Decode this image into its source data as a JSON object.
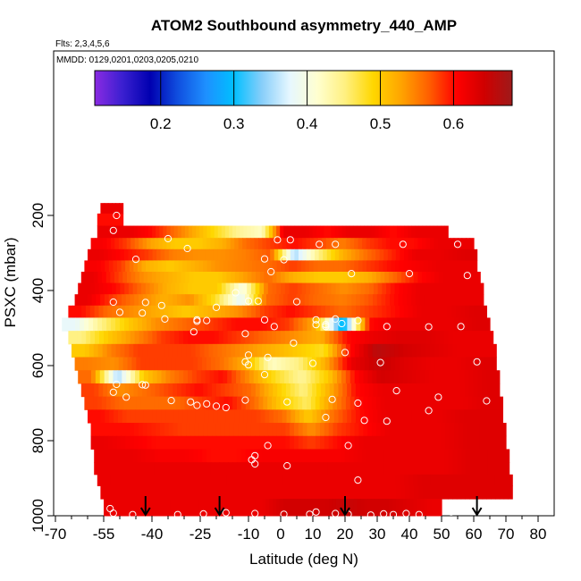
{
  "title": "ATOM2 Southbound asymmetry_440_AMP",
  "flights_label": "Flts: 2,3,4,5,6",
  "dates_label": "MMDD: 0129,0201,0203,0205,0210",
  "chart_data": {
    "type": "heatmap",
    "xlabel": "Latitude (deg N)",
    "ylabel": "PSXC (mbar)",
    "xlim": [
      -70,
      85
    ],
    "ylim": [
      1000,
      0
    ],
    "x_ticks": [
      -70,
      -55,
      -40,
      -25,
      -10,
      0,
      10,
      20,
      30,
      40,
      50,
      60,
      70,
      80
    ],
    "x_tick_labels": [
      "-70",
      "-55",
      "-40",
      "-25",
      "-10",
      "0",
      "10",
      "20",
      "30",
      "40",
      "50",
      "60",
      "70",
      "80"
    ],
    "y_ticks": [
      200,
      400,
      600,
      800,
      1000
    ],
    "y_tick_labels": [
      "200",
      "400",
      "600",
      "800",
      "1000"
    ],
    "colorbar": {
      "range": [
        0.11,
        0.68
      ],
      "ticks": [
        0.2,
        0.3,
        0.4,
        0.5,
        0.6
      ],
      "tick_labels": [
        "0.2",
        "0.3",
        "0.4",
        "0.5",
        "0.6"
      ],
      "colors": [
        "#8A2BE2",
        "#3A1FD0",
        "#0000B0",
        "#1050E0",
        "#1E90FF",
        "#00BFFF",
        "#87CEFA",
        "#E6F7FF",
        "#FFFFD0",
        "#FFF080",
        "#FFD700",
        "#FFA500",
        "#FF6000",
        "#FF0000",
        "#D00000",
        "#9E1A1A"
      ]
    },
    "arrows_lat": [
      -42,
      -19,
      20,
      61
    ],
    "rows": [
      {
        "p": 180,
        "x0": -56,
        "x1": -49,
        "values": [
          0.62
        ]
      },
      {
        "p": 210,
        "x0": -57,
        "x1": -49,
        "values": [
          0.6,
          0.6
        ]
      },
      {
        "p": 245,
        "x0": -57,
        "x1": 52,
        "values": [
          0.62,
          0.62,
          0.6,
          0.56,
          0.52,
          0.48,
          0.44,
          0.42,
          0.62,
          0.62,
          0.6,
          0.62,
          0.62,
          0.6,
          0.62,
          0.62
        ]
      },
      {
        "p": 275,
        "x0": -59,
        "x1": 60,
        "values": [
          0.61,
          0.58,
          0.53,
          0.5,
          0.5,
          0.52,
          0.56,
          0.58,
          0.6,
          0.58,
          0.55,
          0.58,
          0.6,
          0.6,
          0.62,
          0.62
        ]
      },
      {
        "p": 305,
        "x0": -60,
        "x1": 61,
        "values": [
          0.62,
          0.6,
          0.58,
          0.55,
          0.54,
          0.54,
          0.55,
          0.57,
          0.35,
          0.45,
          0.52,
          0.56,
          0.59,
          0.62,
          0.62,
          0.63
        ]
      },
      {
        "p": 335,
        "x0": -61,
        "x1": 61,
        "values": [
          0.61,
          0.58,
          0.52,
          0.5,
          0.52,
          0.54,
          0.55,
          0.56,
          0.58,
          0.56,
          0.56,
          0.58,
          0.6,
          0.61,
          0.62,
          0.62
        ]
      },
      {
        "p": 365,
        "x0": -62,
        "x1": 62,
        "values": [
          0.62,
          0.58,
          0.54,
          0.52,
          0.5,
          0.5,
          0.53,
          0.56,
          0.52,
          0.5,
          0.5,
          0.52,
          0.56,
          0.6,
          0.62,
          0.62
        ]
      },
      {
        "p": 395,
        "x0": -63,
        "x1": 63,
        "values": [
          0.62,
          0.6,
          0.56,
          0.52,
          0.5,
          0.5,
          0.4,
          0.56,
          0.58,
          0.56,
          0.54,
          0.56,
          0.6,
          0.62,
          0.62,
          0.62
        ]
      },
      {
        "p": 425,
        "x0": -64,
        "x1": 63,
        "values": [
          0.62,
          0.58,
          0.55,
          0.52,
          0.54,
          0.48,
          0.38,
          0.56,
          0.58,
          0.56,
          0.55,
          0.57,
          0.6,
          0.62,
          0.62,
          0.62
        ]
      },
      {
        "p": 455,
        "x0": -66,
        "x1": 64,
        "values": [
          0.6,
          0.56,
          0.54,
          0.52,
          0.5,
          0.52,
          0.54,
          0.58,
          0.6,
          0.58,
          0.56,
          0.58,
          0.6,
          0.62,
          0.62,
          0.63
        ]
      },
      {
        "p": 490,
        "x0": -68,
        "x1": 65,
        "values": [
          0.38,
          0.45,
          0.5,
          0.54,
          0.56,
          0.58,
          0.6,
          0.6,
          0.58,
          0.52,
          0.28,
          0.6,
          0.62,
          0.62,
          0.62,
          0.63
        ]
      },
      {
        "p": 525,
        "x0": -66,
        "x1": 66,
        "values": [
          0.45,
          0.5,
          0.54,
          0.58,
          0.6,
          0.6,
          0.58,
          0.56,
          0.54,
          0.52,
          0.6,
          0.62,
          0.63,
          0.63,
          0.62,
          0.62
        ]
      },
      {
        "p": 560,
        "x0": -65,
        "x1": 67,
        "values": [
          0.5,
          0.55,
          0.58,
          0.58,
          0.58,
          0.56,
          0.54,
          0.52,
          0.5,
          0.48,
          0.6,
          0.66,
          0.64,
          0.63,
          0.62,
          0.62
        ]
      },
      {
        "p": 595,
        "x0": -64,
        "x1": 67,
        "values": [
          0.55,
          0.54,
          0.58,
          0.58,
          0.58,
          0.56,
          0.52,
          0.42,
          0.45,
          0.52,
          0.62,
          0.65,
          0.63,
          0.62,
          0.62,
          0.63
        ]
      },
      {
        "p": 630,
        "x0": -63,
        "x1": 68,
        "values": [
          0.56,
          0.35,
          0.5,
          0.55,
          0.58,
          0.6,
          0.54,
          0.48,
          0.44,
          0.5,
          0.6,
          0.64,
          0.63,
          0.62,
          0.62,
          0.63
        ]
      },
      {
        "p": 665,
        "x0": -62,
        "x1": 68,
        "values": [
          0.58,
          0.54,
          0.56,
          0.58,
          0.6,
          0.58,
          0.56,
          0.5,
          0.45,
          0.52,
          0.6,
          0.62,
          0.62,
          0.62,
          0.62,
          0.63
        ]
      },
      {
        "p": 700,
        "x0": -61,
        "x1": 69,
        "values": [
          0.58,
          0.56,
          0.56,
          0.56,
          0.58,
          0.6,
          0.56,
          0.5,
          0.46,
          0.54,
          0.6,
          0.62,
          0.62,
          0.62,
          0.62,
          0.63
        ]
      },
      {
        "p": 735,
        "x0": -60,
        "x1": 69,
        "values": [
          0.6,
          0.58,
          0.58,
          0.58,
          0.58,
          0.58,
          0.58,
          0.56,
          0.5,
          0.56,
          0.6,
          0.62,
          0.62,
          0.62,
          0.63,
          0.63
        ]
      },
      {
        "p": 770,
        "x0": -59,
        "x1": 70,
        "values": [
          0.6,
          0.6,
          0.59,
          0.58,
          0.58,
          0.58,
          0.58,
          0.58,
          0.54,
          0.58,
          0.6,
          0.62,
          0.62,
          0.62,
          0.63,
          0.63
        ]
      },
      {
        "p": 805,
        "x0": -59,
        "x1": 70,
        "values": [
          0.62,
          0.61,
          0.6,
          0.6,
          0.6,
          0.6,
          0.6,
          0.6,
          0.58,
          0.6,
          0.62,
          0.62,
          0.62,
          0.62,
          0.63,
          0.63
        ]
      },
      {
        "p": 840,
        "x0": -58,
        "x1": 71,
        "values": [
          0.62,
          0.62,
          0.61,
          0.61,
          0.6,
          0.6,
          0.61,
          0.61,
          0.61,
          0.61,
          0.62,
          0.62,
          0.62,
          0.62,
          0.63,
          0.63
        ]
      },
      {
        "p": 875,
        "x0": -58,
        "x1": 71,
        "values": [
          0.62,
          0.62,
          0.62,
          0.62,
          0.62,
          0.62,
          0.62,
          0.62,
          0.62,
          0.62,
          0.62,
          0.62,
          0.62,
          0.62,
          0.63,
          0.63
        ]
      },
      {
        "p": 905,
        "x0": -57,
        "x1": 72,
        "values": [
          0.62,
          0.62,
          0.62,
          0.62,
          0.62,
          0.62,
          0.62,
          0.62,
          0.62,
          0.62,
          0.62,
          0.62,
          0.63,
          0.63,
          0.63,
          0.63
        ]
      },
      {
        "p": 935,
        "x0": -56,
        "x1": 72,
        "values": [
          0.62,
          0.62,
          0.62,
          0.62,
          0.62,
          0.62,
          0.62,
          0.62,
          0.62,
          0.62,
          0.62,
          0.62,
          0.63,
          0.63,
          0.63,
          0.63
        ]
      },
      {
        "p": 975,
        "x0": -55,
        "x1": 50,
        "values": [
          0.62,
          0.62,
          0.62,
          0.62,
          0.62,
          0.62,
          0.62,
          0.62,
          0.64,
          0.64,
          0.64,
          0.65,
          0.64,
          0.64,
          0.63,
          0.62
        ]
      }
    ],
    "points": [
      [
        -51,
        200
      ],
      [
        -47,
        200
      ],
      [
        -44,
        200
      ],
      [
        -52,
        240
      ],
      [
        -35,
        262
      ],
      [
        -1,
        265
      ],
      [
        3,
        265
      ],
      [
        -29,
        288
      ],
      [
        12,
        277
      ],
      [
        17,
        277
      ],
      [
        38,
        277
      ],
      [
        55,
        277
      ],
      [
        -45,
        317
      ],
      [
        -5,
        316
      ],
      [
        1,
        318
      ],
      [
        -3,
        350
      ],
      [
        22,
        355
      ],
      [
        40,
        355
      ],
      [
        58,
        360
      ],
      [
        -42,
        432
      ],
      [
        -37,
        440
      ],
      [
        -20,
        445
      ],
      [
        -14,
        406
      ],
      [
        -10,
        428
      ],
      [
        -7,
        428
      ],
      [
        5,
        430
      ],
      [
        -52,
        431
      ],
      [
        -50,
        458
      ],
      [
        -43,
        460
      ],
      [
        -36,
        476
      ],
      [
        -26,
        478
      ],
      [
        -23,
        480
      ],
      [
        -5,
        478
      ],
      [
        11,
        478
      ],
      [
        17,
        476
      ],
      [
        24,
        480
      ],
      [
        -26,
        482
      ],
      [
        -2,
        496
      ],
      [
        11,
        491
      ],
      [
        14,
        491
      ],
      [
        19,
        488
      ],
      [
        14,
        496
      ],
      [
        33,
        496
      ],
      [
        46,
        497
      ],
      [
        56,
        496
      ],
      [
        -27,
        510
      ],
      [
        -11,
        515
      ],
      [
        4,
        540
      ],
      [
        20,
        565
      ],
      [
        -10,
        572
      ],
      [
        -4,
        578
      ],
      [
        -11,
        590
      ],
      [
        -10,
        598
      ],
      [
        10,
        594
      ],
      [
        31,
        592
      ],
      [
        61,
        590
      ],
      [
        -5,
        624
      ],
      [
        -51,
        650
      ],
      [
        -43,
        651
      ],
      [
        -42,
        652
      ],
      [
        -52,
        671
      ],
      [
        -48,
        684
      ],
      [
        -34,
        693
      ],
      [
        -28,
        697
      ],
      [
        -23,
        702
      ],
      [
        -26,
        706
      ],
      [
        -20,
        708
      ],
      [
        -17,
        712
      ],
      [
        -11,
        692
      ],
      [
        2,
        697
      ],
      [
        16,
        690
      ],
      [
        24,
        700
      ],
      [
        36,
        667
      ],
      [
        49,
        684
      ],
      [
        64,
        694
      ],
      [
        72,
        713
      ],
      [
        14,
        738
      ],
      [
        26,
        746
      ],
      [
        33,
        748
      ],
      [
        46,
        720
      ],
      [
        -4,
        813
      ],
      [
        21,
        813
      ],
      [
        -8,
        840
      ],
      [
        -9,
        851
      ],
      [
        -8,
        862
      ],
      [
        2,
        867
      ],
      [
        24,
        905
      ],
      [
        -53,
        981
      ],
      [
        -52,
        993
      ],
      [
        -46,
        997
      ],
      [
        -32,
        997
      ],
      [
        -24,
        995
      ],
      [
        -17,
        992
      ],
      [
        -8,
        994
      ],
      [
        1,
        996
      ],
      [
        9,
        996
      ],
      [
        11,
        990
      ],
      [
        17,
        994
      ],
      [
        21,
        996
      ],
      [
        28,
        998
      ],
      [
        32,
        995
      ],
      [
        35,
        997
      ],
      [
        39,
        994
      ],
      [
        43,
        997
      ],
      [
        53,
        990
      ]
    ]
  }
}
